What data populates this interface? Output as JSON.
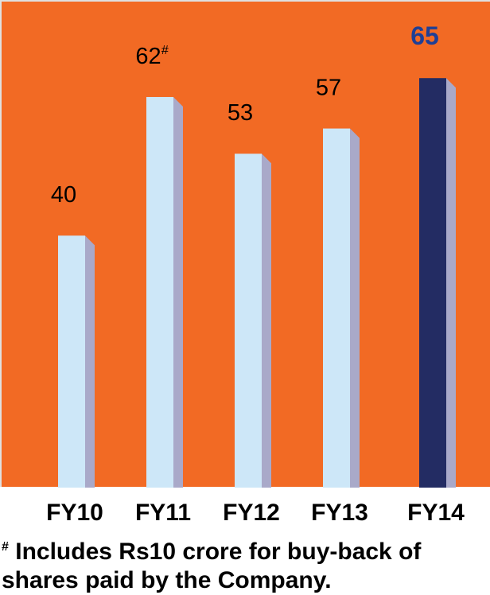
{
  "chart_data": {
    "type": "bar",
    "categories": [
      "FY10",
      "FY11",
      "FY12",
      "FY13",
      "FY14"
    ],
    "values": [
      40,
      62,
      53,
      57,
      65
    ],
    "data_labels": [
      "40",
      "62",
      "53",
      "57",
      "65"
    ],
    "label_markers": [
      "",
      "#",
      "",
      "",
      ""
    ],
    "highlight_index": 4,
    "ylim": [
      0,
      75
    ],
    "grid": false,
    "legend": "none"
  },
  "colors": {
    "background": "#f26a24",
    "bar": "#cde7f8",
    "bar_side": "#a9a9c9",
    "highlight_bar": "#232c63",
    "highlight_label": "#1f3f95",
    "label": "#000000"
  },
  "footnote": {
    "marker": "#",
    "text": "Includes Rs10 crore for buy-back of shares paid by the Company."
  }
}
